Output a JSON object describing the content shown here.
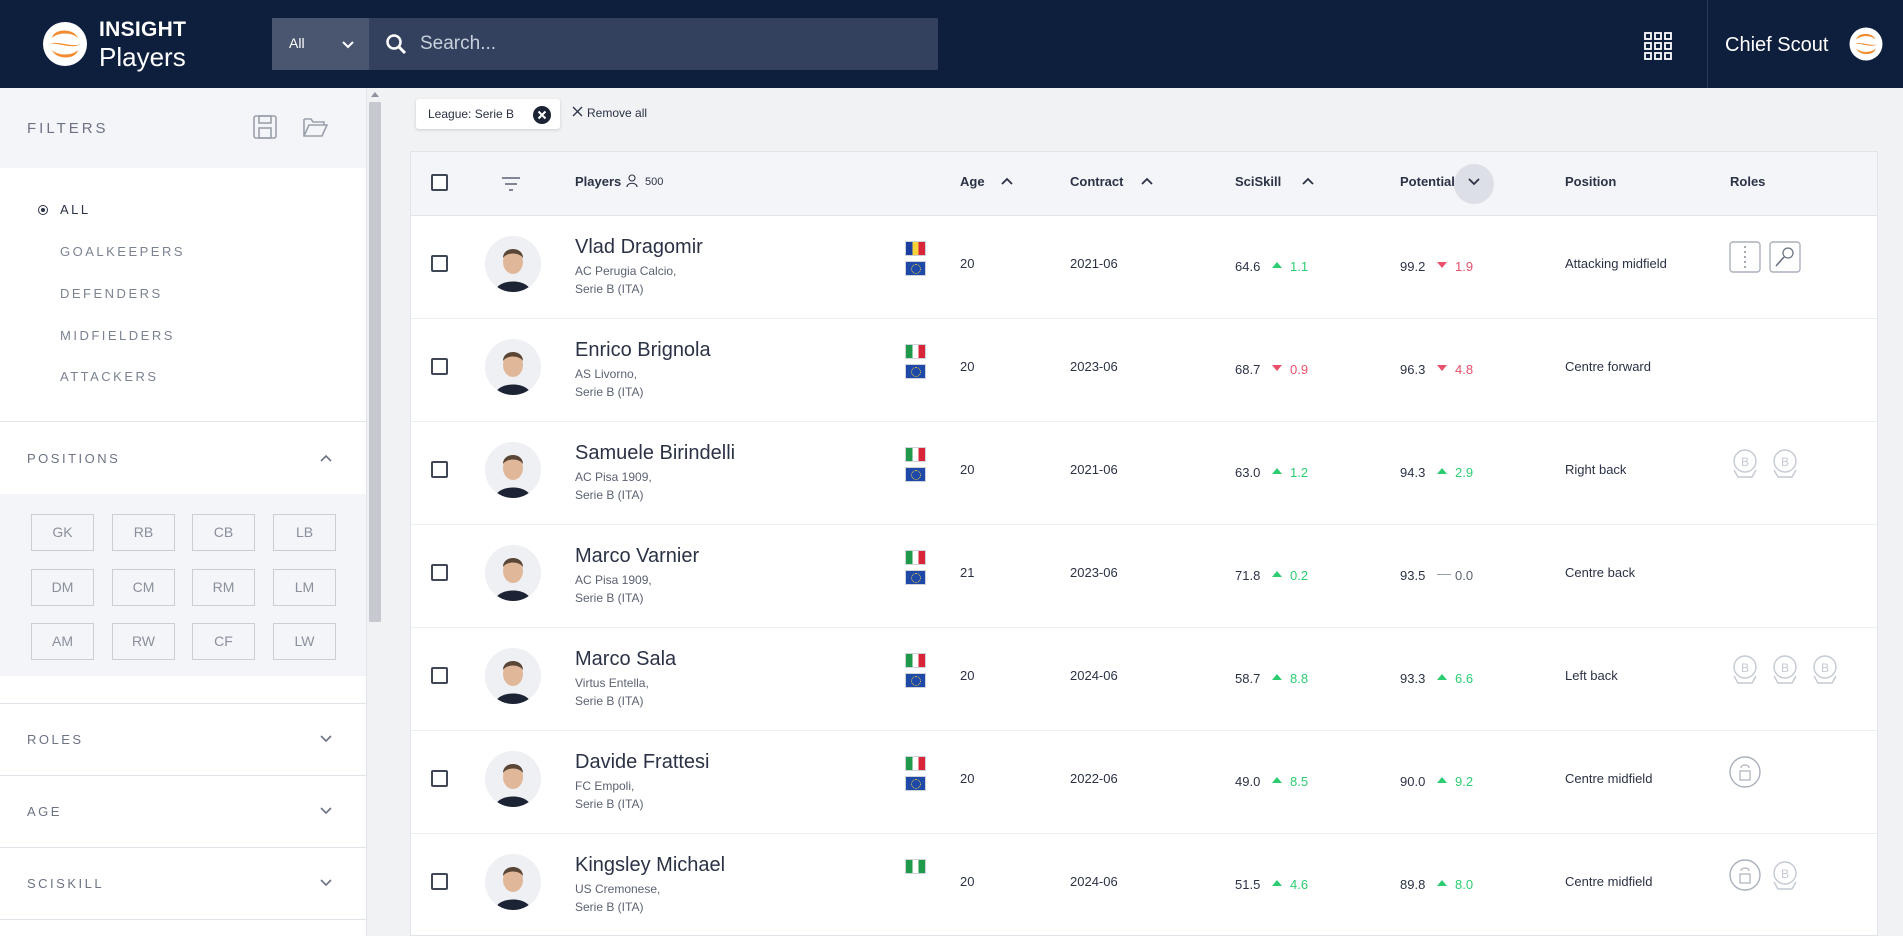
{
  "header": {
    "brand_top": "INSIGHT",
    "brand_bottom": "Players",
    "search_scope": "All",
    "search_placeholder": "Search...",
    "user_name": "Chief Scout"
  },
  "sidebar": {
    "title": "FILTERS",
    "categories": [
      {
        "label": "ALL",
        "active": true
      },
      {
        "label": "GOALKEEPERS",
        "active": false
      },
      {
        "label": "DEFENDERS",
        "active": false
      },
      {
        "label": "MIDFIELDERS",
        "active": false
      },
      {
        "label": "ATTACKERS",
        "active": false
      }
    ],
    "positions_title": "POSITIONS",
    "positions": [
      "GK",
      "RB",
      "CB",
      "LB",
      "DM",
      "CM",
      "RM",
      "LM",
      "AM",
      "RW",
      "CF",
      "LW"
    ],
    "sections": [
      "ROLES",
      "AGE",
      "SCISKILL"
    ]
  },
  "active_filters": {
    "chips": [
      "League: Serie B"
    ],
    "remove_all_label": "Remove all"
  },
  "table": {
    "columns": {
      "players": "Players",
      "players_count": "500",
      "age": "Age",
      "contract": "Contract",
      "sciskill": "SciSkill",
      "potential": "Potential",
      "position": "Position",
      "roles": "Roles"
    },
    "rows": [
      {
        "name": "Vlad Dragomir",
        "club": "AC Perugia Calcio,",
        "league": "Serie B (ITA)",
        "nation": "romania",
        "eu": true,
        "age": "20",
        "contract": "2021-06",
        "sciskill": "64.6",
        "sciskill_delta": "1.1",
        "sciskill_dir": "up",
        "potential": "99.2",
        "potential_delta": "1.9",
        "potential_dir": "down",
        "position": "Attacking midfield",
        "roles": [
          "creator-role-icon",
          "dribbler-role-icon"
        ]
      },
      {
        "name": "Enrico Brignola",
        "club": "AS Livorno,",
        "league": "Serie B (ITA)",
        "nation": "italy",
        "eu": true,
        "age": "20",
        "contract": "2023-06",
        "sciskill": "68.7",
        "sciskill_delta": "0.9",
        "sciskill_dir": "down",
        "potential": "96.3",
        "potential_delta": "4.8",
        "potential_dir": "down",
        "position": "Centre forward",
        "roles": []
      },
      {
        "name": "Samuele Birindelli",
        "club": "AC Pisa 1909,",
        "league": "Serie B (ITA)",
        "nation": "italy",
        "eu": true,
        "age": "20",
        "contract": "2021-06",
        "sciskill": "63.0",
        "sciskill_delta": "1.2",
        "sciskill_dir": "up",
        "potential": "94.3",
        "potential_delta": "2.9",
        "potential_dir": "up",
        "position": "Right back",
        "roles": [
          "ball-winner-role-icon",
          "wingback-role-icon"
        ]
      },
      {
        "name": "Marco Varnier",
        "club": "AC Pisa 1909,",
        "league": "Serie B (ITA)",
        "nation": "italy",
        "eu": true,
        "age": "21",
        "contract": "2023-06",
        "sciskill": "71.8",
        "sciskill_delta": "0.2",
        "sciskill_dir": "up",
        "potential": "93.5",
        "potential_delta": "0.0",
        "potential_dir": "flat",
        "position": "Centre back",
        "roles": []
      },
      {
        "name": "Marco Sala",
        "club": "Virtus Entella,",
        "league": "Serie B (ITA)",
        "nation": "italy",
        "eu": true,
        "age": "20",
        "contract": "2024-06",
        "sciskill": "58.7",
        "sciskill_delta": "8.8",
        "sciskill_dir": "up",
        "potential": "93.3",
        "potential_delta": "6.6",
        "potential_dir": "up",
        "position": "Left back",
        "roles": [
          "ball-winner-role-icon",
          "wingback-role-icon",
          "overlapper-role-icon"
        ]
      },
      {
        "name": "Davide Frattesi",
        "club": "FC Empoli,",
        "league": "Serie B (ITA)",
        "nation": "italy",
        "eu": true,
        "age": "20",
        "contract": "2022-06",
        "sciskill": "49.0",
        "sciskill_delta": "8.5",
        "sciskill_dir": "up",
        "potential": "90.0",
        "potential_delta": "9.2",
        "potential_dir": "up",
        "position": "Centre midfield",
        "roles": [
          "box-to-box-role-icon"
        ]
      },
      {
        "name": "Kingsley Michael",
        "club": "US Cremonese,",
        "league": "Serie B (ITA)",
        "nation": "nigeria",
        "eu": false,
        "age": "20",
        "contract": "2024-06",
        "sciskill": "51.5",
        "sciskill_delta": "4.6",
        "sciskill_dir": "up",
        "potential": "89.8",
        "potential_delta": "8.0",
        "potential_dir": "up",
        "position": "Centre midfield",
        "roles": [
          "box-to-box-role-icon",
          "ball-winner-role-icon"
        ]
      }
    ]
  },
  "colors": {
    "topbar": "#0e1e3d",
    "brand_orange": "#f28c2f",
    "delta_up": "#2ecc71",
    "delta_down": "#e8506b"
  }
}
